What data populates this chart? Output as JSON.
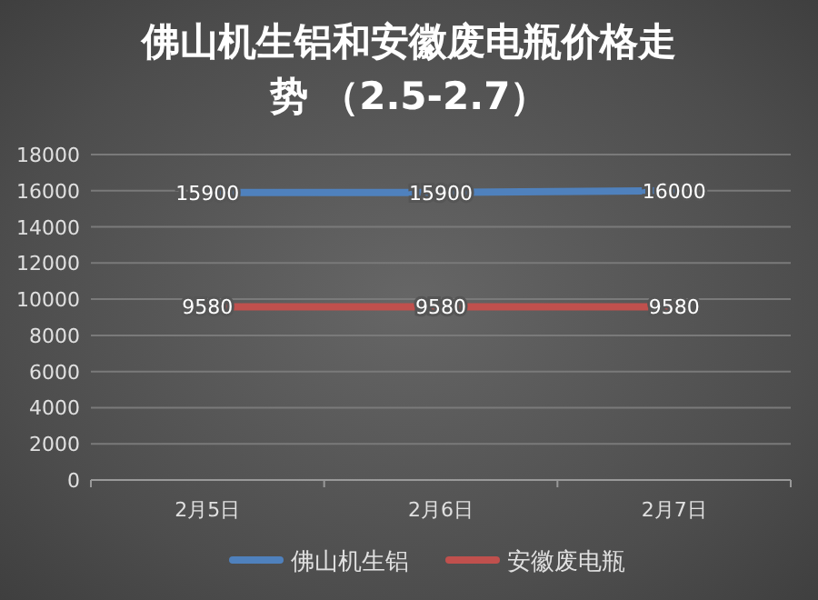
{
  "chart_data": {
    "type": "line",
    "title": "佛山机生铝和安徽废电瓶价格走势 （2.5-2.7）",
    "categories": [
      "2月5日",
      "2月6日",
      "2月7日"
    ],
    "series": [
      {
        "name": "佛山机生铝",
        "color": "#4f81bd",
        "values": [
          15900,
          15900,
          16000
        ]
      },
      {
        "name": "安徽废电瓶",
        "color": "#c0504d",
        "values": [
          9580,
          9580,
          9580
        ]
      }
    ],
    "ylim": [
      0,
      18000
    ],
    "yticks": [
      0,
      2000,
      4000,
      6000,
      8000,
      10000,
      12000,
      14000,
      16000,
      18000
    ],
    "grid": "y",
    "legend": "bottom",
    "data_labels": true,
    "marker": "none",
    "line_style": "solid"
  }
}
